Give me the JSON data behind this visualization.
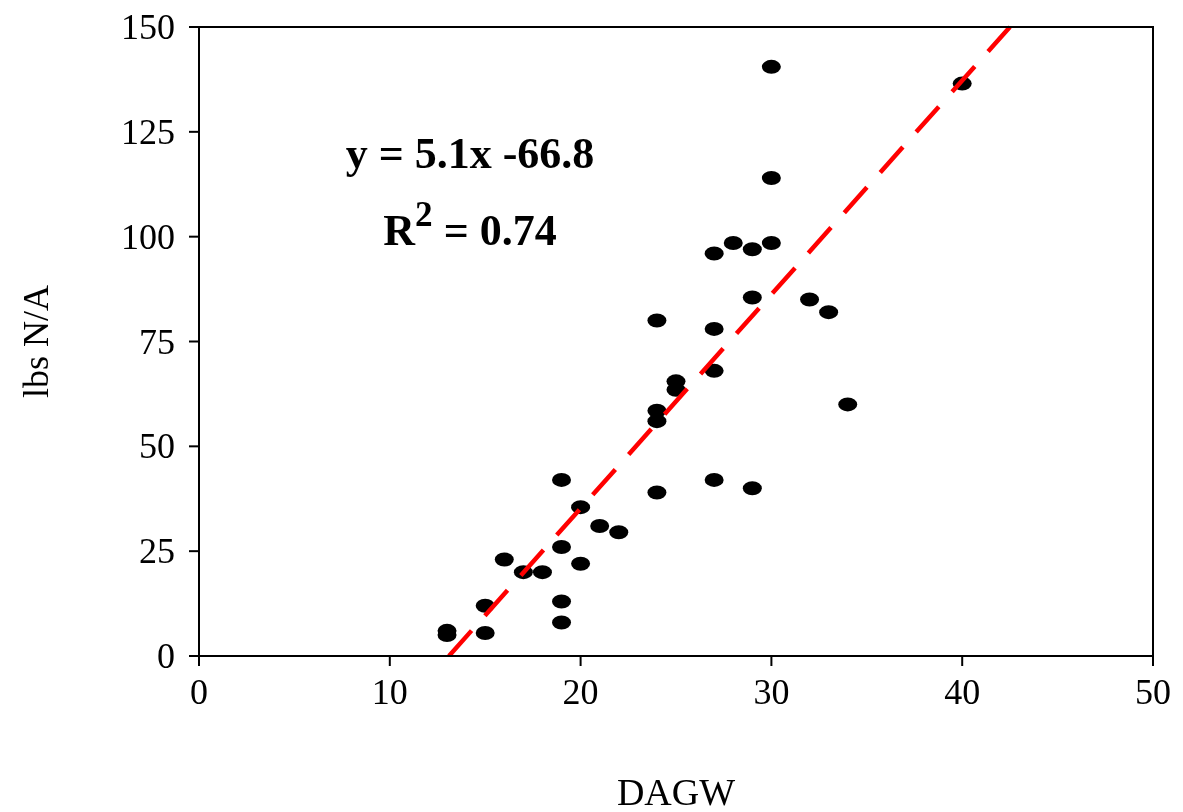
{
  "chart_data": {
    "type": "scatter",
    "xlabel": "DAGW",
    "ylabel": "lbs N/A",
    "xlim": [
      0,
      50
    ],
    "ylim": [
      0,
      150
    ],
    "xticks": [
      0,
      10,
      20,
      30,
      40,
      50
    ],
    "yticks": [
      0,
      25,
      50,
      75,
      100,
      125,
      150
    ],
    "grid": false,
    "annotations": [
      "y = 5.1x -66.8",
      "R$^{2}$ = 0.74"
    ],
    "series": [
      {
        "color": "#000000",
        "marker": "circle",
        "x": [
          13,
          13,
          15,
          15,
          16,
          17,
          18,
          19,
          19,
          19,
          19,
          20,
          20,
          21,
          22,
          24,
          24,
          24,
          24,
          25,
          25,
          27,
          27,
          27,
          27,
          28,
          29,
          29,
          29,
          30,
          30,
          30,
          32,
          33,
          34,
          40
        ],
        "values": [
          6,
          5,
          12,
          5.5,
          23,
          20,
          20,
          42,
          26,
          13,
          8,
          35.5,
          22,
          31,
          29.5,
          39,
          56,
          58.5,
          80,
          63.5,
          65.5,
          42,
          68,
          78,
          96,
          98.5,
          40,
          85.5,
          97,
          98.5,
          114,
          140.5,
          85,
          82,
          60,
          136.5
        ]
      },
      {
        "type": "line",
        "color": "#ff0000",
        "line_style": "dashed",
        "x": [
          13.1,
          42.5
        ],
        "values": [
          0,
          150
        ]
      }
    ]
  }
}
